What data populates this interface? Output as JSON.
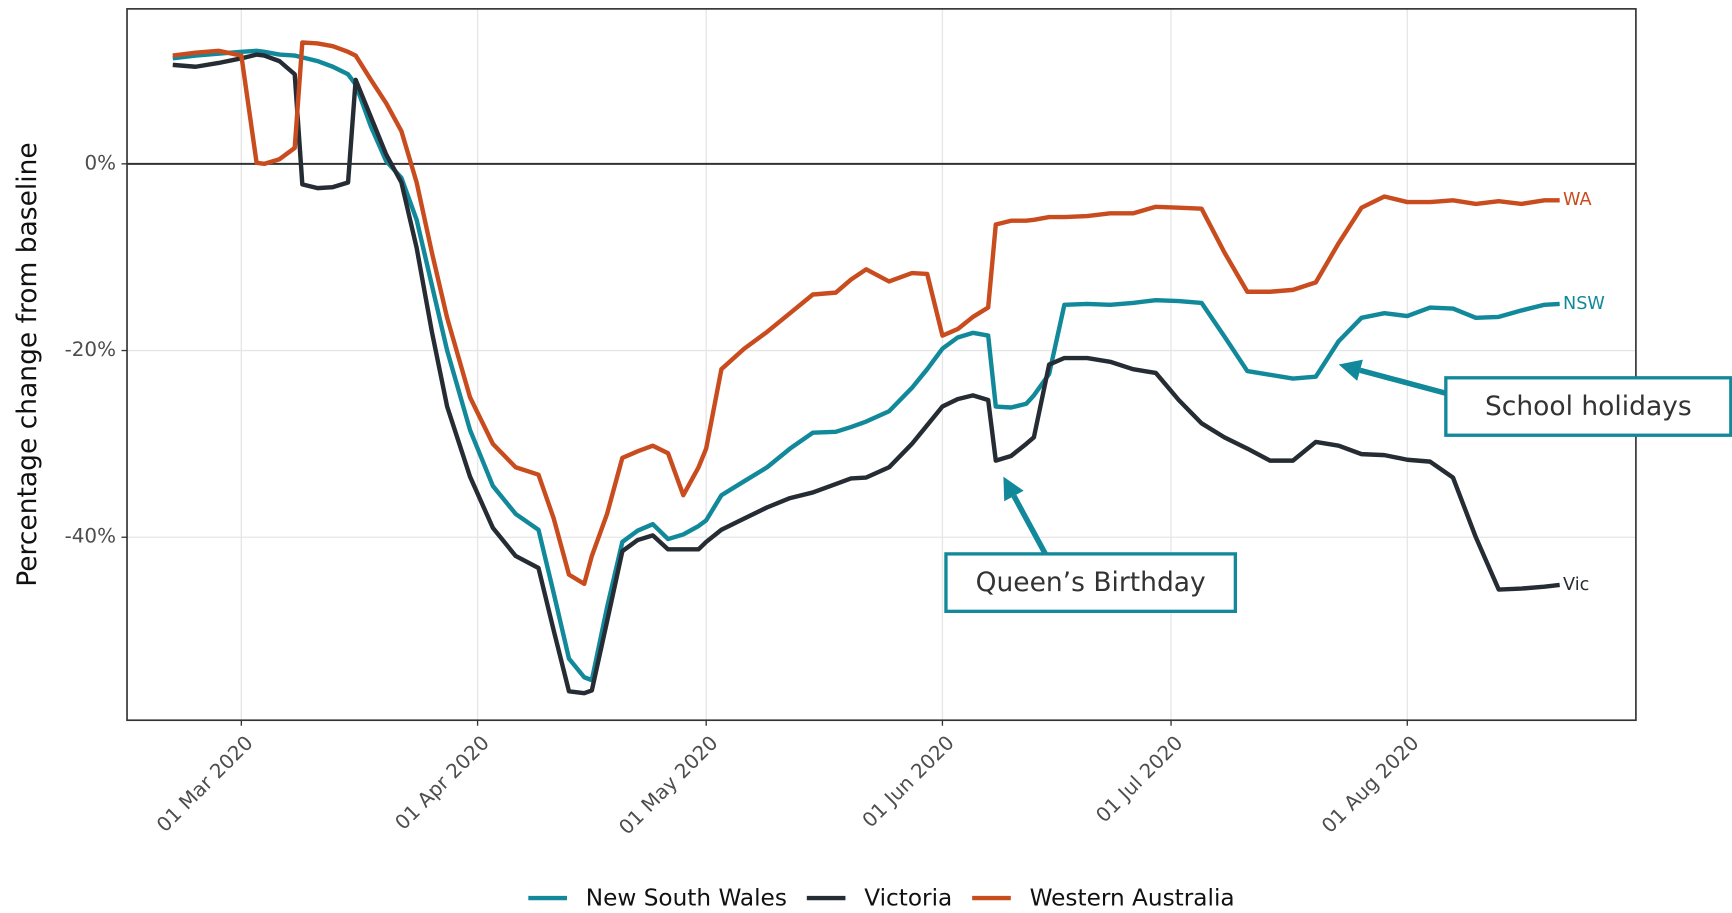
{
  "chart_data": {
    "type": "line",
    "ylabel": "Percentage change from baseline",
    "x": [
      "2020-02-21",
      "2020-02-24",
      "2020-02-27",
      "2020-03-01",
      "2020-03-03",
      "2020-03-04",
      "2020-03-06",
      "2020-03-08",
      "2020-03-09",
      "2020-03-11",
      "2020-03-13",
      "2020-03-15",
      "2020-03-16",
      "2020-03-18",
      "2020-03-20",
      "2020-03-22",
      "2020-03-24",
      "2020-03-26",
      "2020-03-28",
      "2020-03-31",
      "2020-04-03",
      "2020-04-06",
      "2020-04-09",
      "2020-04-11",
      "2020-04-13",
      "2020-04-15",
      "2020-04-16",
      "2020-04-18",
      "2020-04-20",
      "2020-04-22",
      "2020-04-24",
      "2020-04-26",
      "2020-04-28",
      "2020-04-30",
      "2020-05-01",
      "2020-05-03",
      "2020-05-06",
      "2020-05-09",
      "2020-05-12",
      "2020-05-15",
      "2020-05-18",
      "2020-05-20",
      "2020-05-22",
      "2020-05-25",
      "2020-05-28",
      "2020-05-30",
      "2020-06-01",
      "2020-06-03",
      "2020-06-05",
      "2020-06-07",
      "2020-06-08",
      "2020-06-10",
      "2020-06-12",
      "2020-06-13",
      "2020-06-15",
      "2020-06-17",
      "2020-06-20",
      "2020-06-23",
      "2020-06-26",
      "2020-06-29",
      "2020-07-02",
      "2020-07-05",
      "2020-07-08",
      "2020-07-11",
      "2020-07-14",
      "2020-07-17",
      "2020-07-20",
      "2020-07-23",
      "2020-07-26",
      "2020-07-29",
      "2020-08-01",
      "2020-08-04",
      "2020-08-07",
      "2020-08-10",
      "2020-08-13",
      "2020-08-16",
      "2020-08-19",
      "2020-08-21"
    ],
    "series": [
      {
        "name": "New South Wales",
        "label": "NSW",
        "color": "#11899a",
        "values": [
          11.3,
          11.6,
          11.8,
          12.0,
          12.1,
          12.0,
          11.7,
          11.6,
          11.4,
          11.0,
          10.4,
          9.6,
          8.5,
          4,
          0.3,
          -1.5,
          -6,
          -13,
          -20,
          -28.5,
          -34.5,
          -37.5,
          -39.2,
          -46,
          -53,
          -55,
          -55.3,
          -47.5,
          -40.5,
          -39.3,
          -38.6,
          -40.2,
          -39.7,
          -38.8,
          -38.2,
          -35.5,
          -34,
          -32.5,
          -30.5,
          -28.8,
          -28.7,
          -28.2,
          -27.6,
          -26.5,
          -24,
          -22,
          -19.8,
          -18.6,
          -18.1,
          -18.4,
          -26,
          -26.1,
          -25.7,
          -24.8,
          -22.5,
          -15.1,
          -15,
          -15.1,
          -14.9,
          -14.6,
          -14.7,
          -14.9,
          -18.5,
          -22.2,
          -22.6,
          -23,
          -22.8,
          -19,
          -16.5,
          -16,
          -16.3,
          -15.4,
          -15.5,
          -16.5,
          -16.4,
          -15.7,
          -15.1,
          -15
        ]
      },
      {
        "name": "Victoria",
        "label": "Vic",
        "color": "#262c33",
        "values": [
          10.6,
          10.4,
          10.8,
          11.3,
          11.7,
          11.6,
          11.0,
          9.6,
          -2.2,
          -2.6,
          -2.5,
          -2.0,
          9.0,
          5,
          1,
          -2,
          -9,
          -18,
          -26,
          -33.5,
          -39,
          -42,
          -43.3,
          -50,
          -56.5,
          -56.7,
          -56.4,
          -49,
          -41.5,
          -40.3,
          -39.8,
          -41.3,
          -41.3,
          -41.3,
          -40.5,
          -39.2,
          -38,
          -36.8,
          -35.8,
          -35.2,
          -34.3,
          -33.7,
          -33.6,
          -32.5,
          -30,
          -28,
          -26,
          -25.2,
          -24.8,
          -25.3,
          -31.8,
          -31.3,
          -30,
          -29.3,
          -21.5,
          -20.8,
          -20.8,
          -21.2,
          -22,
          -22.4,
          -25.3,
          -27.8,
          -29.3,
          -30.5,
          -31.8,
          -31.8,
          -29.8,
          -30.2,
          -31.1,
          -31.2,
          -31.7,
          -31.9,
          -33.6,
          -40,
          -45.6,
          -45.5,
          -45.3,
          -45.1
        ]
      },
      {
        "name": "Western Australia",
        "label": "WA",
        "color": "#c94c1f",
        "values": [
          11.6,
          11.9,
          12.1,
          11.6,
          0.1,
          0.0,
          0.5,
          1.7,
          13.0,
          12.9,
          12.6,
          12.0,
          11.6,
          9.0,
          6.5,
          3.5,
          -2,
          -9.5,
          -16.5,
          -25,
          -30,
          -32.5,
          -33.3,
          -38,
          -44,
          -45,
          -42,
          -37.5,
          -31.5,
          -30.8,
          -30.2,
          -31,
          -35.5,
          -32.5,
          -30.5,
          -22,
          -19.8,
          -18,
          -16,
          -14,
          -13.8,
          -12.4,
          -11.3,
          -12.6,
          -11.7,
          -11.8,
          -18.4,
          -17.7,
          -16.4,
          -15.4,
          -6.5,
          -6.1,
          -6.1,
          -6.0,
          -5.7,
          -5.7,
          -5.6,
          -5.3,
          -5.3,
          -4.6,
          -4.7,
          -4.8,
          -9.5,
          -13.7,
          -13.7,
          -13.5,
          -12.7,
          -8.5,
          -4.7,
          -3.5,
          -4.1,
          -4.1,
          -3.9,
          -4.3,
          -4,
          -4.3,
          -3.9,
          -3.9
        ]
      }
    ],
    "xlim": [
      "2020-02-15",
      "2020-08-31"
    ],
    "xticks": [
      {
        "value": "2020-03-01",
        "label": "01 Mar 2020"
      },
      {
        "value": "2020-04-01",
        "label": "01 Apr 2020"
      },
      {
        "value": "2020-05-01",
        "label": "01 May 2020"
      },
      {
        "value": "2020-06-01",
        "label": "01 Jun 2020"
      },
      {
        "value": "2020-07-01",
        "label": "01 Jul 2020"
      },
      {
        "value": "2020-08-01",
        "label": "01 Aug 2020"
      }
    ],
    "ylim": [
      -59.6,
      16.6
    ],
    "yticks": [
      {
        "value": 0,
        "label": "0%"
      },
      {
        "value": -20,
        "label": "-20%"
      },
      {
        "value": -40,
        "label": "-40%"
      }
    ],
    "hline": 0,
    "grid": true,
    "legend": "bottom",
    "annotations": [
      {
        "text": "School holidays",
        "x": "2020-07-23",
        "y": -21.5
      },
      {
        "text": "Queen’s Birthday",
        "x": "2020-06-09",
        "y": -33.5
      }
    ]
  }
}
